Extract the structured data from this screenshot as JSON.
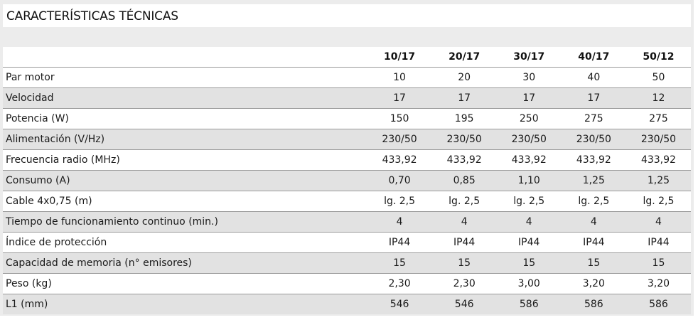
{
  "title": "CARACTERÍSTICAS TÉCNICAS",
  "models": [
    "10/17",
    "20/17",
    "30/17",
    "40/17",
    "50/12"
  ],
  "rows": [
    {
      "label": "Par motor",
      "values": [
        "10",
        "20",
        "30",
        "40",
        "50"
      ]
    },
    {
      "label": "Velocidad",
      "values": [
        "17",
        "17",
        "17",
        "17",
        "12"
      ]
    },
    {
      "label": "Potencia (W)",
      "values": [
        "150",
        "195",
        "250",
        "275",
        "275"
      ]
    },
    {
      "label": "Alimentación (V/Hz)",
      "values": [
        "230/50",
        "230/50",
        "230/50",
        "230/50",
        "230/50"
      ]
    },
    {
      "label": "Frecuencia radio (MHz)",
      "values": [
        "433,92",
        "433,92",
        "433,92",
        "433,92",
        "433,92"
      ]
    },
    {
      "label": "Consumo (A)",
      "values": [
        "0,70",
        "0,85",
        "1,10",
        "1,25",
        "1,25"
      ]
    },
    {
      "label": "Cable 4x0,75 (m)",
      "values": [
        "lg. 2,5",
        "lg. 2,5",
        "lg. 2,5",
        "lg. 2,5",
        "lg. 2,5"
      ]
    },
    {
      "label": "Tiempo de funcionamiento continuo (min.)",
      "values": [
        "4",
        "4",
        "4",
        "4",
        "4"
      ]
    },
    {
      "label": "Índice de protección",
      "values": [
        "IP44",
        "IP44",
        "IP44",
        "IP44",
        "IP44"
      ]
    },
    {
      "label": "Capacidad de memoria (n° emisores)",
      "values": [
        "15",
        "15",
        "15",
        "15",
        "15"
      ]
    },
    {
      "label": "Peso (kg)",
      "values": [
        "2,30",
        "2,30",
        "3,00",
        "3,20",
        "3,20"
      ]
    },
    {
      "label": "L1 (mm)",
      "values": [
        "546",
        "546",
        "586",
        "586",
        "586"
      ]
    }
  ]
}
